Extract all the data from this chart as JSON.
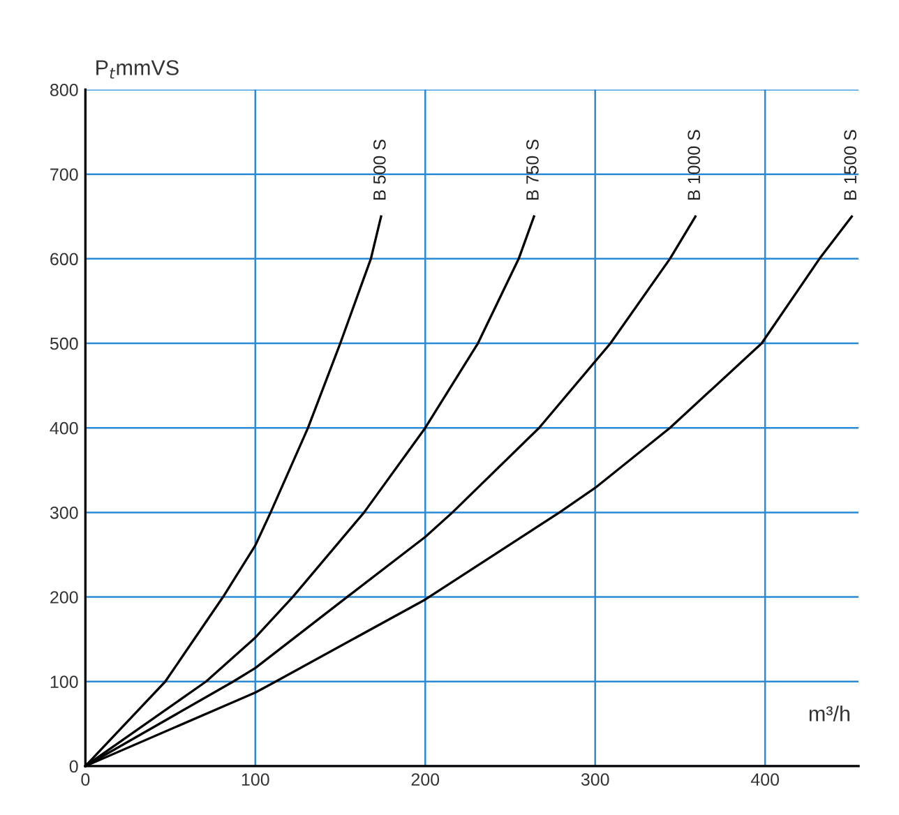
{
  "chart_data": {
    "type": "line",
    "ylabel": "P$_{t}$mmVS",
    "xlabel": "m³/h",
    "xlim": [
      0,
      455
    ],
    "ylim": [
      0,
      800
    ],
    "xticks": [
      0,
      100,
      200,
      300,
      400
    ],
    "yticks": [
      0,
      100,
      200,
      300,
      400,
      500,
      600,
      700,
      800
    ],
    "grid": true,
    "marker": "none",
    "line_style": "solid",
    "legend": false,
    "series": [
      {
        "name": "B 500 S",
        "color": "#000000",
        "x": [
          0,
          47,
          81,
          100,
          109,
          131,
          150,
          168,
          174
        ],
        "values": [
          0,
          100,
          200,
          261,
          300,
          400,
          500,
          600,
          650
        ]
      },
      {
        "name": "B 750 S",
        "color": "#000000",
        "x": [
          0,
          71,
          100,
          122,
          164,
          200,
          231,
          255,
          264
        ],
        "values": [
          0,
          100,
          152,
          200,
          300,
          400,
          500,
          600,
          650
        ]
      },
      {
        "name": "B 1000 S",
        "color": "#000000",
        "x": [
          0,
          87,
          100,
          154,
          200,
          216,
          267,
          309,
          344,
          359
        ],
        "values": [
          0,
          100,
          116,
          200,
          271,
          300,
          400,
          500,
          600,
          650
        ]
      },
      {
        "name": "B 1500 S",
        "color": "#000000",
        "x": [
          0,
          100,
          112,
          200,
          279,
          300,
          344,
          398,
          432,
          451
        ],
        "values": [
          0,
          87,
          100,
          197,
          300,
          329,
          400,
          500,
          600,
          650
        ]
      }
    ]
  }
}
